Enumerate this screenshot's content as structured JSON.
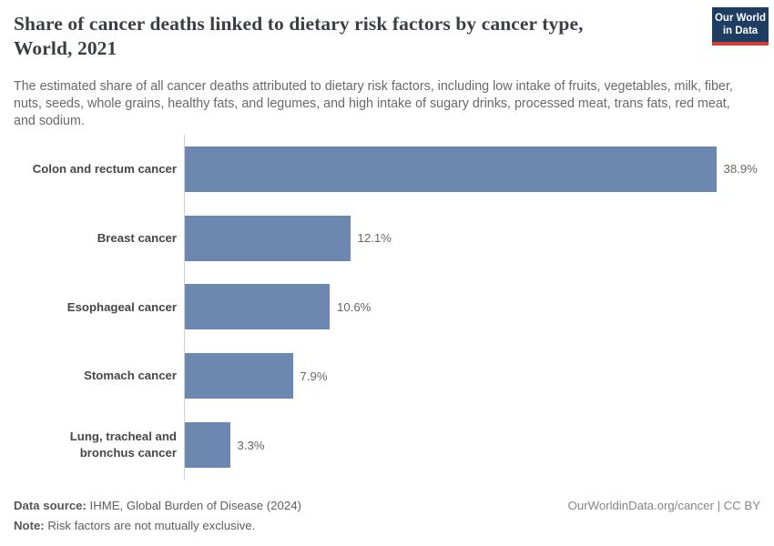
{
  "header": {
    "title_lines": [
      "Share of cancer deaths linked to dietary risk factors by cancer type,",
      "World, 2021"
    ],
    "subtitle": "The estimated share of all cancer deaths attributed to dietary risk factors, including low intake of fruits, vegetables, milk, fiber, nuts, seeds, whole grains, healthy fats, and legumes, and high intake of sugary drinks, processed meat, trans fats, red meat, and sodium.",
    "logo": {
      "line1": "Our World",
      "line2": "in Data"
    }
  },
  "chart_data": {
    "type": "bar",
    "orientation": "horizontal",
    "title": "Share of cancer deaths linked to dietary risk factors by cancer type, World, 2021",
    "categories": [
      "Colon and rectum cancer",
      "Breast cancer",
      "Esophageal cancer",
      "Stomach cancer",
      "Lung, tracheal and bronchus cancer"
    ],
    "values": [
      38.9,
      12.1,
      10.6,
      7.9,
      3.3
    ],
    "value_labels": [
      "38.9%",
      "12.1%",
      "10.6%",
      "7.9%",
      "3.3%"
    ],
    "unit": "%",
    "xlim": [
      0,
      40
    ],
    "grid": false,
    "legend": false,
    "bar_color": "#6c87b0"
  },
  "footer": {
    "data_source_label": "Data source:",
    "data_source_text": " IHME, Global Burden of Disease (2024)",
    "note_label": "Note:",
    "note_text": " Risk factors are not mutually exclusive.",
    "right_text": "OurWorldinData.org/cancer | CC BY"
  },
  "colors": {
    "bar": "#6c87b0",
    "logo_navy": "#1d3d63",
    "logo_red": "#d43d31",
    "axis_line": "#d0d0d0"
  }
}
